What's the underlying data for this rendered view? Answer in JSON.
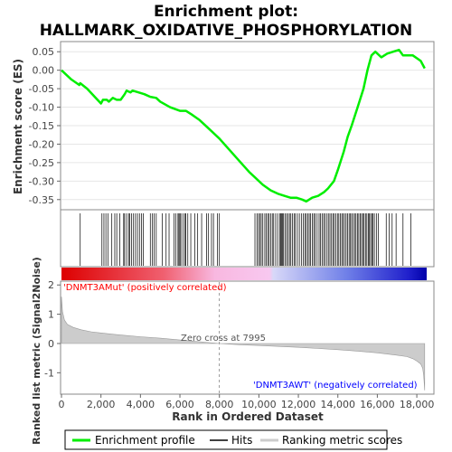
{
  "title_line1": "Enrichment plot:",
  "title_line2": "HALLMARK_OXIDATIVE_PHOSPHORYLATION",
  "colors": {
    "es_line": "#00ee00",
    "hits": "#000000",
    "metric_fill": "#cccccc",
    "metric_line": "#999999",
    "pos_label": "#ff0000",
    "neg_label": "#0000ff",
    "zero_cross": "#999999"
  },
  "chart_data": [
    {
      "type": "line",
      "panel": "enrichment",
      "ylabel": "Enrichment score (ES)",
      "ylim": [
        -0.375,
        0.075
      ],
      "yticks": [
        0.05,
        0.0,
        -0.05,
        -0.1,
        -0.15,
        -0.2,
        -0.25,
        -0.3,
        -0.35
      ],
      "ytick_labels": [
        "0.05",
        "0.00",
        "-0.05",
        "-0.10",
        "-0.15",
        "-0.20",
        "-0.25",
        "-0.30",
        "-0.35"
      ],
      "series": [
        {
          "name": "Enrichment profile",
          "x": [
            0,
            500,
            900,
            950,
            1300,
            2000,
            2100,
            2300,
            2400,
            2600,
            2800,
            3000,
            3200,
            3300,
            3500,
            3600,
            3900,
            4200,
            4500,
            4800,
            5000,
            5500,
            6000,
            6300,
            6600,
            7000,
            7500,
            8000,
            8500,
            9000,
            9500,
            9800,
            10200,
            10600,
            11000,
            11300,
            11600,
            11900,
            12200,
            12400,
            12700,
            13000,
            13300,
            13500,
            13800,
            14000,
            14300,
            14500,
            14700,
            15000,
            15300,
            15500,
            15700,
            15900,
            16200,
            16500,
            16800,
            17100,
            17300,
            17600,
            17800,
            18200,
            18400
          ],
          "y": [
            0.0,
            -0.025,
            -0.04,
            -0.035,
            -0.05,
            -0.09,
            -0.08,
            -0.08,
            -0.085,
            -0.075,
            -0.08,
            -0.08,
            -0.065,
            -0.055,
            -0.06,
            -0.055,
            -0.06,
            -0.065,
            -0.072,
            -0.075,
            -0.085,
            -0.1,
            -0.11,
            -0.11,
            -0.12,
            -0.135,
            -0.16,
            -0.185,
            -0.215,
            -0.245,
            -0.275,
            -0.29,
            -0.31,
            -0.325,
            -0.335,
            -0.34,
            -0.345,
            -0.345,
            -0.35,
            -0.355,
            -0.345,
            -0.34,
            -0.33,
            -0.32,
            -0.3,
            -0.27,
            -0.22,
            -0.18,
            -0.15,
            -0.1,
            -0.05,
            0.0,
            0.04,
            0.05,
            0.035,
            0.045,
            0.05,
            0.055,
            0.04,
            0.04,
            0.04,
            0.025,
            0.005
          ]
        }
      ]
    },
    {
      "type": "hits",
      "panel": "hits",
      "series": [
        {
          "name": "Hits",
          "x": [
            950,
            2050,
            2150,
            2250,
            2350,
            2550,
            2700,
            2800,
            2950,
            3150,
            3200,
            3300,
            3400,
            3450,
            3550,
            3650,
            3750,
            3850,
            3950,
            4050,
            4150,
            4500,
            4600,
            4700,
            4800,
            5100,
            5300,
            5450,
            5700,
            5800,
            5900,
            5950,
            6000,
            6050,
            6150,
            6250,
            6300,
            6400,
            6550,
            6750,
            6900,
            7100,
            7350,
            7450,
            7600,
            7700,
            7900,
            8000,
            9800,
            9900,
            9980,
            10050,
            10120,
            10200,
            10300,
            10380,
            10450,
            10520,
            10600,
            10680,
            10750,
            10850,
            10950,
            11050,
            11100,
            11150,
            11200,
            11250,
            11320,
            11400,
            11480,
            11550,
            11620,
            11700,
            11780,
            11850,
            11950,
            12050,
            12150,
            12250,
            12330,
            12400,
            12480,
            12550,
            12620,
            12700,
            12780,
            12850,
            12950,
            13050,
            13120,
            13200,
            13280,
            13350,
            13450,
            13520,
            13600,
            13680,
            13750,
            13820,
            13900,
            13980,
            14050,
            14120,
            14200,
            14270,
            14340,
            14420,
            14500,
            14570,
            14640,
            14700,
            14780,
            14850,
            14920,
            14990,
            15060,
            15130,
            15200,
            15270,
            15330,
            15400,
            15470,
            15540,
            15600,
            15660,
            15720,
            15780,
            15850,
            15950,
            16050,
            16450,
            16600,
            16750,
            16950,
            17300,
            17700
          ]
        }
      ]
    },
    {
      "type": "area",
      "panel": "ranked_metric",
      "xlabel": "Rank in Ordered Dataset",
      "ylabel": "Ranked list metric (Signal2Noise)",
      "xlim": [
        0,
        18500
      ],
      "xticks": [
        0,
        2000,
        4000,
        6000,
        8000,
        10000,
        12000,
        14000,
        16000,
        18000
      ],
      "xtick_labels": [
        "0",
        "2,000",
        "4,000",
        "6,000",
        "8,000",
        "10,000",
        "12,000",
        "14,000",
        "16,000",
        "18,000"
      ],
      "ylim": [
        -1.7,
        2.1
      ],
      "yticks": [
        2,
        1,
        0,
        -1
      ],
      "ytick_labels": [
        "2",
        "1",
        "0",
        "-1"
      ],
      "series": [
        {
          "name": "Ranking metric scores",
          "x": [
            0,
            50,
            150,
            300,
            600,
            1000,
            1500,
            2000,
            3000,
            4000,
            5000,
            6000,
            7000,
            7995,
            9000,
            10000,
            11000,
            12000,
            13000,
            14000,
            15000,
            16000,
            17000,
            17500,
            17800,
            18000,
            18200,
            18300,
            18350,
            18400
          ],
          "y": [
            1.6,
            1.1,
            0.8,
            0.65,
            0.55,
            0.47,
            0.4,
            0.36,
            0.29,
            0.23,
            0.18,
            0.12,
            0.06,
            0.0,
            -0.04,
            -0.07,
            -0.1,
            -0.13,
            -0.17,
            -0.21,
            -0.26,
            -0.32,
            -0.4,
            -0.45,
            -0.52,
            -0.6,
            -0.7,
            -0.85,
            -1.1,
            -1.6
          ]
        }
      ],
      "zero_cross_rank": 7995,
      "annotations": {
        "zero_cross": "Zero cross at 7995",
        "positive": "'DNMT3AMut' (positively correlated)",
        "negative": "'DNMT3AWT' (negatively correlated)"
      }
    }
  ],
  "legend": {
    "items": [
      {
        "label": "Enrichment profile",
        "color": "#00ee00"
      },
      {
        "label": "Hits",
        "color": "#000000"
      },
      {
        "label": "Ranking metric scores",
        "color": "#cccccc"
      }
    ]
  }
}
